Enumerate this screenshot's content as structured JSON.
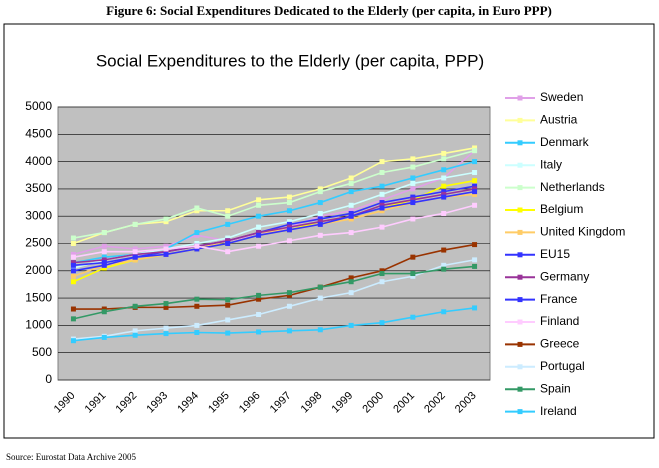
{
  "figure_caption": "Figure 6: Social Expenditures Dedicated to the Elderly (per capita, in Euro PPP)",
  "source": "Source: Eurostat Data Archive 2005",
  "chart_data": {
    "type": "line",
    "title": "Social Expenditures to the Elderly (per capita, PPP)",
    "categories": [
      "1990",
      "1991",
      "1992",
      "1993",
      "1994",
      "1995",
      "1996",
      "1997",
      "1998",
      "1999",
      "2000",
      "2001",
      "2002",
      "2003"
    ],
    "ylim": [
      0,
      5000
    ],
    "yticks": [
      0,
      500,
      1000,
      1500,
      2000,
      2500,
      3000,
      3500,
      4000,
      4500,
      5000
    ],
    "grid": true,
    "legend": "right",
    "background": "#c0c0c0",
    "series": [
      {
        "name": "Sweden",
        "color": "#e0a0e8",
        "values": [
          2300,
          2450,
          2400,
          2450,
          2650,
          2550,
          2650,
          2800,
          3000,
          3100,
          3300,
          3500,
          3700,
          4200
        ]
      },
      {
        "name": "Austria",
        "color": "#ffff99",
        "values": [
          2500,
          2700,
          2850,
          2900,
          3100,
          3100,
          3300,
          3350,
          3500,
          3700,
          4000,
          4050,
          4150,
          4250
        ]
      },
      {
        "name": "Denmark",
        "color": "#33ccff",
        "values": [
          2150,
          2250,
          2300,
          2400,
          2700,
          2850,
          3000,
          3100,
          3250,
          3450,
          3550,
          3700,
          3850,
          4000
        ]
      },
      {
        "name": "Italy",
        "color": "#ccffff",
        "values": [
          2050,
          2200,
          2300,
          2400,
          2500,
          2600,
          2800,
          2900,
          3050,
          3200,
          3400,
          3600,
          3700,
          3800
        ]
      },
      {
        "name": "Netherlands",
        "color": "#ccffcc",
        "values": [
          2600,
          2700,
          2850,
          2950,
          3150,
          3000,
          3200,
          3250,
          3450,
          3600,
          3800,
          3900,
          4050,
          4200
        ]
      },
      {
        "name": "Belgium",
        "color": "#ffff00",
        "values": [
          1800,
          2050,
          2200,
          2300,
          2400,
          2500,
          2650,
          2750,
          2900,
          3000,
          3150,
          3300,
          3550,
          3650
        ]
      },
      {
        "name": "United Kingdom",
        "color": "#ffcc66",
        "values": [
          1900,
          2100,
          2200,
          2300,
          2400,
          2550,
          2700,
          2750,
          2850,
          2950,
          3100,
          3250,
          3350,
          3400
        ]
      },
      {
        "name": "EU15",
        "color": "#3333ff",
        "values": [
          2000,
          2100,
          2250,
          2350,
          2450,
          2550,
          2700,
          2850,
          2950,
          3050,
          3250,
          3350,
          3450,
          3550
        ]
      },
      {
        "name": "Germany",
        "color": "#993399",
        "values": [
          2150,
          2200,
          2300,
          2350,
          2450,
          2550,
          2700,
          2800,
          2900,
          3000,
          3200,
          3300,
          3400,
          3500
        ]
      },
      {
        "name": "France",
        "color": "#3333ff",
        "values": [
          2100,
          2150,
          2250,
          2300,
          2400,
          2500,
          2650,
          2750,
          2850,
          3000,
          3150,
          3250,
          3350,
          3450
        ]
      },
      {
        "name": "Finland",
        "color": "#ffccff",
        "values": [
          2250,
          2350,
          2350,
          2400,
          2450,
          2350,
          2450,
          2550,
          2650,
          2700,
          2800,
          2950,
          3050,
          3200
        ]
      },
      {
        "name": "Greece",
        "color": "#993300",
        "values": [
          1300,
          1300,
          1330,
          1330,
          1350,
          1370,
          1480,
          1550,
          1700,
          1870,
          2000,
          2250,
          2380,
          2480
        ]
      },
      {
        "name": "Portugal",
        "color": "#ccecff",
        "values": [
          750,
          800,
          900,
          950,
          1000,
          1100,
          1200,
          1350,
          1500,
          1600,
          1800,
          1900,
          2100,
          2200
        ]
      },
      {
        "name": "Spain",
        "color": "#339966",
        "values": [
          1120,
          1250,
          1350,
          1400,
          1480,
          1470,
          1550,
          1600,
          1700,
          1800,
          1950,
          1950,
          2030,
          2080
        ]
      },
      {
        "name": "Ireland",
        "color": "#33ccff",
        "values": [
          720,
          780,
          820,
          850,
          870,
          860,
          880,
          900,
          920,
          1000,
          1050,
          1150,
          1250,
          1320
        ]
      }
    ]
  }
}
